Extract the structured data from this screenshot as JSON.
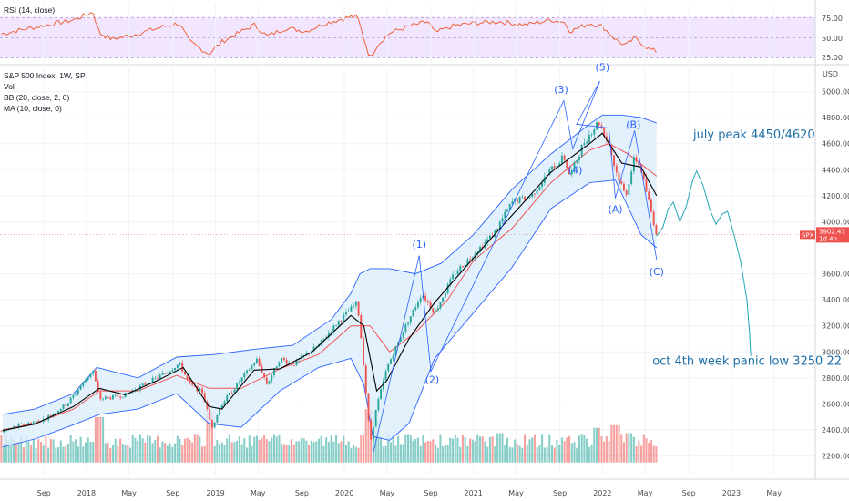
{
  "colors": {
    "rsi_line": "#f0623a",
    "rsi_band": "#e9d5ff",
    "candle_up": "#26a69a",
    "candle_down": "#ef5350",
    "volume_up": "#26a69a",
    "volume_down": "#ef5350",
    "bb_line": "#2962ff",
    "bb_fill": "#dceefc",
    "ma_line": "#000000",
    "basis_line": "#ef5350",
    "wave_line": "#2962ff",
    "projection": "#22a6b3",
    "price_line": "#ef5350"
  },
  "chart_data": {
    "type": "candlestick",
    "indicators": {
      "rsi": {
        "label": "RSI (14, close)",
        "levels": [
          "75.00",
          "50.00",
          "25.00"
        ],
        "ylim": [
          20,
          90
        ]
      },
      "legend": [
        "S&P 500 Index, 1W, SP",
        "Vol",
        "BB (20, close, 2, 0)",
        "MA (10, close, 0)"
      ]
    },
    "ylabel": "USD",
    "ylim": [
      2050,
      5200
    ],
    "y_ticks": [
      {
        "v": 5000,
        "t": "5000.00"
      },
      {
        "v": 4800,
        "t": "4800.00"
      },
      {
        "v": 4600,
        "t": "4600.00"
      },
      {
        "v": 4400,
        "t": "4400.00"
      },
      {
        "v": 4200,
        "t": "4200.00"
      },
      {
        "v": 4000,
        "t": "4000.00"
      },
      {
        "v": 3600,
        "t": "3600.00"
      },
      {
        "v": 3400,
        "t": "3400.00"
      },
      {
        "v": 3200,
        "t": "3200.00"
      },
      {
        "v": 3000,
        "t": "3000.00"
      },
      {
        "v": 2800,
        "t": "2800.00"
      },
      {
        "v": 2600,
        "t": "2600.00"
      },
      {
        "v": 2400,
        "t": "2400.00"
      },
      {
        "v": 2200,
        "t": "2200.00"
      }
    ],
    "x_ticks": [
      "Sep",
      "2018",
      "May",
      "Sep",
      "2019",
      "May",
      "Sep",
      "2020",
      "May",
      "Sep",
      "2021",
      "May",
      "Sep",
      "2022",
      "May",
      "Sep",
      "2023",
      "May"
    ],
    "x_tick_dates": [
      2017.67,
      2018.0,
      2018.33,
      2018.67,
      2019.0,
      2019.33,
      2019.67,
      2020.0,
      2020.33,
      2020.67,
      2021.0,
      2021.33,
      2021.67,
      2022.0,
      2022.33,
      2022.67,
      2023.0,
      2023.33
    ],
    "xlim": [
      2017.33,
      2023.65
    ],
    "current_price": {
      "symbol": "SPX",
      "value": 3902.43,
      "label": "3902.43",
      "countdown": "1d 4h"
    },
    "close_path": [
      [
        2017.35,
        2390
      ],
      [
        2017.5,
        2440
      ],
      [
        2017.67,
        2480
      ],
      [
        2017.85,
        2600
      ],
      [
        2018.05,
        2860
      ],
      [
        2018.1,
        2640
      ],
      [
        2018.2,
        2650
      ],
      [
        2018.3,
        2670
      ],
      [
        2018.45,
        2750
      ],
      [
        2018.6,
        2830
      ],
      [
        2018.72,
        2910
      ],
      [
        2018.8,
        2750
      ],
      [
        2018.9,
        2690
      ],
      [
        2018.97,
        2420
      ],
      [
        2019.05,
        2600
      ],
      [
        2019.2,
        2790
      ],
      [
        2019.32,
        2940
      ],
      [
        2019.4,
        2750
      ],
      [
        2019.5,
        2950
      ],
      [
        2019.6,
        2900
      ],
      [
        2019.7,
        2980
      ],
      [
        2019.8,
        3050
      ],
      [
        2019.95,
        3230
      ],
      [
        2020.1,
        3380
      ],
      [
        2020.14,
        3000
      ],
      [
        2020.2,
        2300
      ],
      [
        2020.25,
        2580
      ],
      [
        2020.33,
        2880
      ],
      [
        2020.45,
        3150
      ],
      [
        2020.6,
        3450
      ],
      [
        2020.7,
        3300
      ],
      [
        2020.85,
        3600
      ],
      [
        2021.0,
        3750
      ],
      [
        2021.15,
        3900
      ],
      [
        2021.3,
        4150
      ],
      [
        2021.45,
        4200
      ],
      [
        2021.6,
        4400
      ],
      [
        2021.7,
        4500
      ],
      [
        2021.75,
        4350
      ],
      [
        2021.85,
        4600
      ],
      [
        2021.97,
        4770
      ],
      [
        2022.05,
        4600
      ],
      [
        2022.1,
        4400
      ],
      [
        2022.18,
        4200
      ],
      [
        2022.25,
        4500
      ],
      [
        2022.3,
        4400
      ],
      [
        2022.36,
        4150
      ],
      [
        2022.42,
        3902.43
      ]
    ],
    "bb": {
      "upper": [
        [
          2017.35,
          2520
        ],
        [
          2017.6,
          2560
        ],
        [
          2017.9,
          2680
        ],
        [
          2018.08,
          2880
        ],
        [
          2018.4,
          2800
        ],
        [
          2018.7,
          2960
        ],
        [
          2019.0,
          2980
        ],
        [
          2019.3,
          3020
        ],
        [
          2019.6,
          3050
        ],
        [
          2019.9,
          3250
        ],
        [
          2020.05,
          3450
        ],
        [
          2020.12,
          3600
        ],
        [
          2020.2,
          3640
        ],
        [
          2020.35,
          3640
        ],
        [
          2020.55,
          3600
        ],
        [
          2020.75,
          3680
        ],
        [
          2021.0,
          3900
        ],
        [
          2021.3,
          4250
        ],
        [
          2021.6,
          4520
        ],
        [
          2021.9,
          4750
        ],
        [
          2022.0,
          4820
        ],
        [
          2022.15,
          4820
        ],
        [
          2022.3,
          4800
        ],
        [
          2022.42,
          4760
        ]
      ],
      "basis": [
        [
          2017.35,
          2400
        ],
        [
          2017.6,
          2450
        ],
        [
          2017.9,
          2560
        ],
        [
          2018.1,
          2700
        ],
        [
          2018.4,
          2700
        ],
        [
          2018.7,
          2820
        ],
        [
          2018.95,
          2720
        ],
        [
          2019.2,
          2720
        ],
        [
          2019.5,
          2870
        ],
        [
          2019.8,
          2980
        ],
        [
          2020.05,
          3200
        ],
        [
          2020.2,
          3200
        ],
        [
          2020.35,
          3000
        ],
        [
          2020.55,
          3150
        ],
        [
          2020.8,
          3400
        ],
        [
          2021.0,
          3700
        ],
        [
          2021.3,
          3950
        ],
        [
          2021.6,
          4300
        ],
        [
          2021.9,
          4550
        ],
        [
          2022.05,
          4600
        ],
        [
          2022.2,
          4520
        ],
        [
          2022.42,
          4350
        ]
      ],
      "lower": [
        [
          2017.35,
          2270
        ],
        [
          2017.6,
          2330
        ],
        [
          2017.9,
          2440
        ],
        [
          2018.1,
          2520
        ],
        [
          2018.4,
          2560
        ],
        [
          2018.7,
          2680
        ],
        [
          2018.95,
          2450
        ],
        [
          2019.2,
          2420
        ],
        [
          2019.5,
          2700
        ],
        [
          2019.8,
          2880
        ],
        [
          2020.05,
          2950
        ],
        [
          2020.15,
          2750
        ],
        [
          2020.22,
          2350
        ],
        [
          2020.35,
          2320
        ],
        [
          2020.5,
          2450
        ],
        [
          2020.7,
          2950
        ],
        [
          2021.0,
          3300
        ],
        [
          2021.3,
          3650
        ],
        [
          2021.6,
          4100
        ],
        [
          2021.9,
          4300
        ],
        [
          2022.1,
          4320
        ],
        [
          2022.3,
          3900
        ],
        [
          2022.42,
          3800
        ]
      ]
    },
    "ma10": [
      [
        2017.35,
        2395
      ],
      [
        2017.6,
        2445
      ],
      [
        2017.9,
        2580
      ],
      [
        2018.1,
        2720
      ],
      [
        2018.3,
        2670
      ],
      [
        2018.55,
        2780
      ],
      [
        2018.75,
        2880
      ],
      [
        2018.95,
        2580
      ],
      [
        2019.05,
        2560
      ],
      [
        2019.3,
        2860
      ],
      [
        2019.5,
        2870
      ],
      [
        2019.75,
        3000
      ],
      [
        2020.05,
        3280
      ],
      [
        2020.15,
        3200
      ],
      [
        2020.25,
        2700
      ],
      [
        2020.33,
        2780
      ],
      [
        2020.5,
        3100
      ],
      [
        2020.7,
        3380
      ],
      [
        2021.0,
        3720
      ],
      [
        2021.3,
        4050
      ],
      [
        2021.6,
        4380
      ],
      [
        2021.9,
        4600
      ],
      [
        2022.0,
        4680
      ],
      [
        2022.15,
        4450
      ],
      [
        2022.3,
        4420
      ],
      [
        2022.42,
        4200
      ]
    ],
    "volume": {
      "baseline_price": 2150,
      "scale_top_price": 2560,
      "avg": 0.45,
      "spikes": [
        [
          2018.1,
          0.85
        ],
        [
          2018.95,
          0.95
        ],
        [
          2020.18,
          1.0
        ],
        [
          2020.22,
          0.95
        ],
        [
          2020.25,
          0.8
        ],
        [
          2021.2,
          0.55
        ],
        [
          2021.95,
          0.65
        ],
        [
          2022.1,
          0.7
        ],
        [
          2022.2,
          0.55
        ]
      ]
    },
    "rsi": [
      [
        2017.35,
        55
      ],
      [
        2017.5,
        60
      ],
      [
        2017.7,
        66
      ],
      [
        2017.9,
        72
      ],
      [
        2018.05,
        82
      ],
      [
        2018.1,
        56
      ],
      [
        2018.2,
        48
      ],
      [
        2018.4,
        55
      ],
      [
        2018.6,
        64
      ],
      [
        2018.72,
        68
      ],
      [
        2018.8,
        45
      ],
      [
        2018.95,
        30
      ],
      [
        2019.05,
        45
      ],
      [
        2019.3,
        66
      ],
      [
        2019.4,
        52
      ],
      [
        2019.55,
        62
      ],
      [
        2019.7,
        58
      ],
      [
        2019.85,
        68
      ],
      [
        2020.05,
        76
      ],
      [
        2020.1,
        76
      ],
      [
        2020.14,
        55
      ],
      [
        2020.2,
        24
      ],
      [
        2020.25,
        40
      ],
      [
        2020.35,
        56
      ],
      [
        2020.5,
        64
      ],
      [
        2020.65,
        70
      ],
      [
        2020.7,
        56
      ],
      [
        2020.85,
        65
      ],
      [
        2021.0,
        68
      ],
      [
        2021.2,
        70
      ],
      [
        2021.4,
        66
      ],
      [
        2021.6,
        72
      ],
      [
        2021.7,
        70
      ],
      [
        2021.75,
        58
      ],
      [
        2021.9,
        68
      ],
      [
        2022.0,
        64
      ],
      [
        2022.1,
        48
      ],
      [
        2022.18,
        40
      ],
      [
        2022.25,
        50
      ],
      [
        2022.3,
        44
      ],
      [
        2022.36,
        36
      ],
      [
        2022.42,
        33
      ]
    ],
    "wave_path": [
      [
        2020.22,
        2210
      ],
      [
        2020.58,
        3740
      ],
      [
        2020.67,
        2850
      ],
      [
        2021.7,
        4930
      ],
      [
        2021.77,
        4560
      ],
      [
        2021.98,
        5080
      ],
      [
        2021.8,
        4750
      ],
      [
        2022.05,
        4720
      ],
      [
        2022.1,
        4180
      ],
      [
        2022.25,
        4700
      ],
      [
        2022.42,
        3710
      ]
    ],
    "projection": [
      [
        2022.42,
        3890
      ],
      [
        2022.47,
        3960
      ],
      [
        2022.51,
        4100
      ],
      [
        2022.55,
        4150
      ],
      [
        2022.6,
        4000
      ],
      [
        2022.65,
        4120
      ],
      [
        2022.7,
        4320
      ],
      [
        2022.73,
        4390
      ],
      [
        2022.78,
        4280
      ],
      [
        2022.83,
        4100
      ],
      [
        2022.88,
        3980
      ],
      [
        2022.93,
        4060
      ],
      [
        2022.97,
        4080
      ],
      [
        2023.02,
        3900
      ],
      [
        2023.07,
        3700
      ],
      [
        2023.12,
        3400
      ],
      [
        2023.14,
        3150
      ],
      [
        2023.15,
        2970
      ]
    ],
    "wave_labels": [
      {
        "t": "(1)",
        "x": 2020.58,
        "y": 3800
      },
      {
        "t": "(2)",
        "x": 2020.68,
        "y": 2760
      },
      {
        "t": "(3)",
        "x": 2021.68,
        "y": 4990
      },
      {
        "t": "(4)",
        "x": 2021.79,
        "y": 4370
      },
      {
        "t": "(5)",
        "x": 2022.0,
        "y": 5160
      },
      {
        "t": "(A)",
        "x": 2022.1,
        "y": 4070
      },
      {
        "t": "(B)",
        "x": 2022.24,
        "y": 4720
      },
      {
        "t": "(C)",
        "x": 2022.42,
        "y": 3590
      }
    ],
    "annotations": [
      {
        "t": "july peak 4450/4620",
        "x": 2022.88,
        "y": 4640
      },
      {
        "t": "oct 4th week panic low 3250 22",
        "x": 2023.15,
        "y": 2900
      }
    ]
  }
}
